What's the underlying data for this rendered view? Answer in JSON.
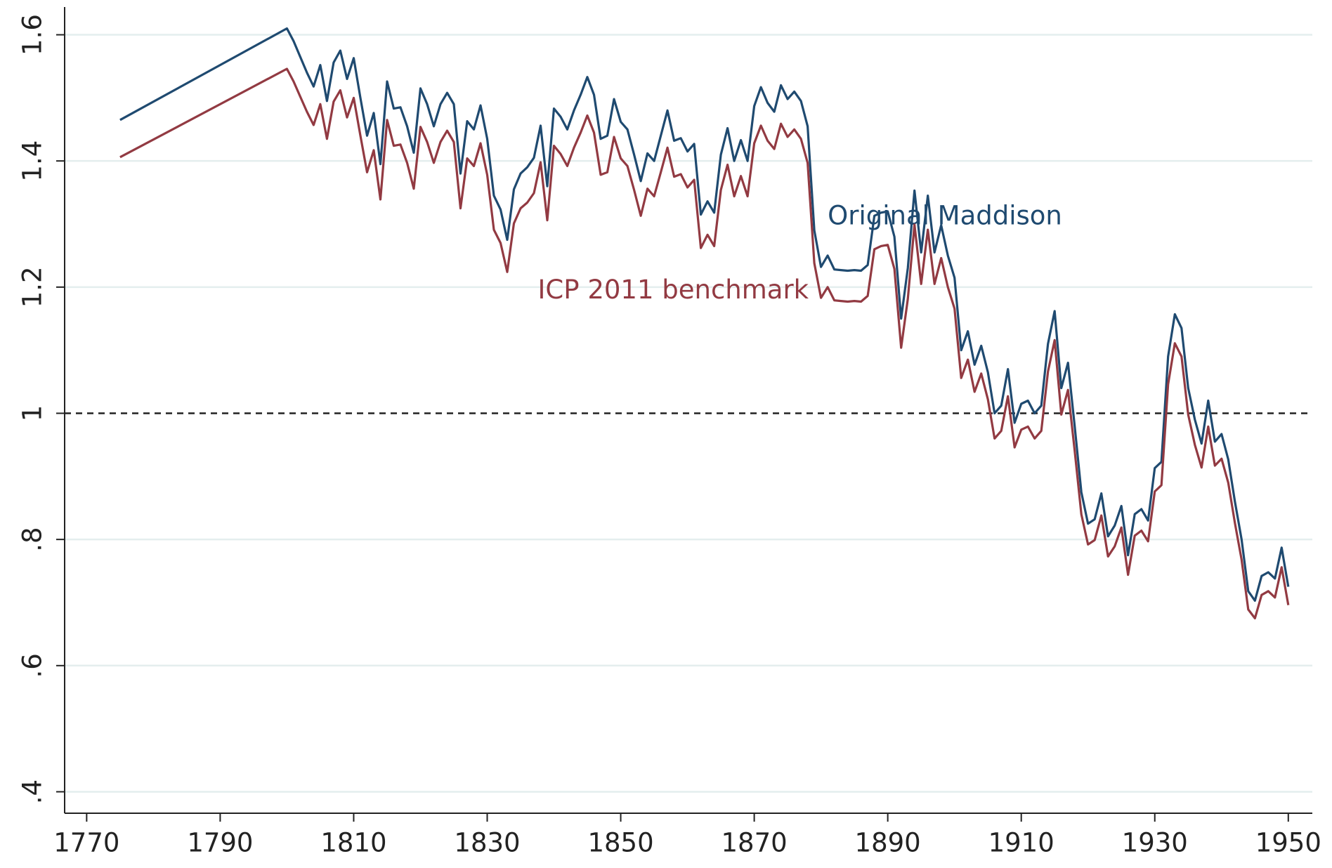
{
  "chart_data": {
    "type": "line",
    "x": [
      1775,
      1800,
      1801,
      1802,
      1803,
      1804,
      1805,
      1806,
      1807,
      1808,
      1809,
      1810,
      1811,
      1812,
      1813,
      1814,
      1815,
      1816,
      1817,
      1818,
      1819,
      1820,
      1821,
      1822,
      1823,
      1824,
      1825,
      1826,
      1827,
      1828,
      1829,
      1830,
      1831,
      1832,
      1833,
      1834,
      1835,
      1836,
      1837,
      1838,
      1839,
      1840,
      1841,
      1842,
      1843,
      1844,
      1845,
      1846,
      1847,
      1848,
      1849,
      1850,
      1851,
      1852,
      1853,
      1854,
      1855,
      1856,
      1857,
      1858,
      1859,
      1860,
      1861,
      1862,
      1863,
      1864,
      1865,
      1866,
      1867,
      1868,
      1869,
      1870,
      1871,
      1872,
      1873,
      1874,
      1875,
      1876,
      1877,
      1878,
      1879,
      1880,
      1881,
      1882,
      1883,
      1884,
      1885,
      1886,
      1887,
      1888,
      1889,
      1890,
      1891,
      1892,
      1893,
      1894,
      1895,
      1896,
      1897,
      1898,
      1899,
      1900,
      1901,
      1902,
      1903,
      1904,
      1905,
      1906,
      1907,
      1908,
      1909,
      1910,
      1911,
      1912,
      1913,
      1914,
      1915,
      1916,
      1917,
      1918,
      1919,
      1920,
      1921,
      1922,
      1923,
      1924,
      1925,
      1926,
      1927,
      1928,
      1929,
      1930,
      1931,
      1932,
      1933,
      1934,
      1935,
      1936,
      1937,
      1938,
      1939,
      1940,
      1941,
      1942,
      1943,
      1944,
      1945,
      1946,
      1947,
      1948,
      1949,
      1950
    ],
    "series": [
      {
        "name": "Original Maddison",
        "color": "#1f4a70",
        "values": [
          1.465,
          1.61,
          1.59,
          1.565,
          1.54,
          1.518,
          1.552,
          1.495,
          1.556,
          1.575,
          1.53,
          1.563,
          1.5,
          1.44,
          1.476,
          1.395,
          1.526,
          1.483,
          1.485,
          1.455,
          1.413,
          1.515,
          1.49,
          1.455,
          1.49,
          1.508,
          1.49,
          1.38,
          1.463,
          1.45,
          1.488,
          1.435,
          1.345,
          1.323,
          1.275,
          1.355,
          1.38,
          1.39,
          1.405,
          1.456,
          1.36,
          1.483,
          1.47,
          1.45,
          1.48,
          1.505,
          1.533,
          1.505,
          1.435,
          1.44,
          1.498,
          1.462,
          1.45,
          1.41,
          1.368,
          1.412,
          1.4,
          1.44,
          1.48,
          1.432,
          1.436,
          1.415,
          1.427,
          1.315,
          1.336,
          1.318,
          1.41,
          1.452,
          1.4,
          1.433,
          1.4,
          1.487,
          1.517,
          1.492,
          1.478,
          1.52,
          1.498,
          1.51,
          1.495,
          1.455,
          1.29,
          1.232,
          1.25,
          1.228,
          1.227,
          1.226,
          1.227,
          1.226,
          1.235,
          1.313,
          1.318,
          1.32,
          1.28,
          1.15,
          1.23,
          1.353,
          1.255,
          1.345,
          1.255,
          1.298,
          1.25,
          1.215,
          1.1,
          1.13,
          1.077,
          1.107,
          1.065,
          1.0,
          1.012,
          1.07,
          0.985,
          1.015,
          1.02,
          1.0,
          1.012,
          1.11,
          1.162,
          1.04,
          1.08,
          0.98,
          0.875,
          0.825,
          0.832,
          0.873,
          0.805,
          0.822,
          0.853,
          0.775,
          0.84,
          0.848,
          0.83,
          0.913,
          0.923,
          1.09,
          1.157,
          1.135,
          1.04,
          0.99,
          0.952,
          1.02,
          0.955,
          0.967,
          0.927,
          0.86,
          0.8,
          0.718,
          0.703,
          0.742,
          0.748,
          0.738,
          0.787,
          0.725
        ]
      },
      {
        "name": "ICP 2011 benchmark",
        "color": "#923a42",
        "values": [
          1.406,
          1.546,
          1.526,
          1.502,
          1.478,
          1.457,
          1.49,
          1.435,
          1.494,
          1.512,
          1.469,
          1.5,
          1.44,
          1.382,
          1.417,
          1.339,
          1.465,
          1.424,
          1.426,
          1.397,
          1.356,
          1.454,
          1.43,
          1.397,
          1.43,
          1.448,
          1.43,
          1.325,
          1.404,
          1.392,
          1.428,
          1.378,
          1.291,
          1.27,
          1.224,
          1.301,
          1.325,
          1.334,
          1.349,
          1.398,
          1.306,
          1.424,
          1.411,
          1.392,
          1.421,
          1.445,
          1.472,
          1.445,
          1.378,
          1.382,
          1.438,
          1.404,
          1.392,
          1.354,
          1.313,
          1.356,
          1.344,
          1.382,
          1.421,
          1.375,
          1.379,
          1.358,
          1.37,
          1.262,
          1.283,
          1.265,
          1.354,
          1.394,
          1.344,
          1.376,
          1.344,
          1.428,
          1.456,
          1.432,
          1.419,
          1.459,
          1.438,
          1.45,
          1.435,
          1.397,
          1.238,
          1.183,
          1.2,
          1.179,
          1.178,
          1.177,
          1.178,
          1.177,
          1.186,
          1.26,
          1.265,
          1.267,
          1.229,
          1.104,
          1.181,
          1.299,
          1.205,
          1.291,
          1.205,
          1.246,
          1.2,
          1.166,
          1.056,
          1.085,
          1.034,
          1.063,
          1.022,
          0.96,
          0.972,
          1.027,
          0.946,
          0.974,
          0.979,
          0.96,
          0.972,
          1.066,
          1.116,
          0.998,
          1.037,
          0.941,
          0.84,
          0.792,
          0.799,
          0.838,
          0.773,
          0.789,
          0.819,
          0.744,
          0.806,
          0.814,
          0.797,
          0.876,
          0.886,
          1.046,
          1.111,
          1.09,
          0.998,
          0.95,
          0.914,
          0.979,
          0.917,
          0.928,
          0.89,
          0.826,
          0.768,
          0.689,
          0.675,
          0.712,
          0.718,
          0.708,
          0.756,
          0.696
        ]
      }
    ],
    "xlim": [
      1766.7,
      1953.6
    ],
    "xticks": [
      1770,
      1790,
      1810,
      1830,
      1850,
      1870,
      1890,
      1910,
      1930,
      1950
    ],
    "ylim": [
      0.366,
      1.644
    ],
    "yticks": [
      {
        "value": 0.4,
        "label": ".4"
      },
      {
        "value": 0.6,
        "label": ".6"
      },
      {
        "value": 0.8,
        "label": ".8"
      },
      1,
      1.2,
      1.4,
      1.6
    ],
    "grid": true,
    "hline": 1
  }
}
